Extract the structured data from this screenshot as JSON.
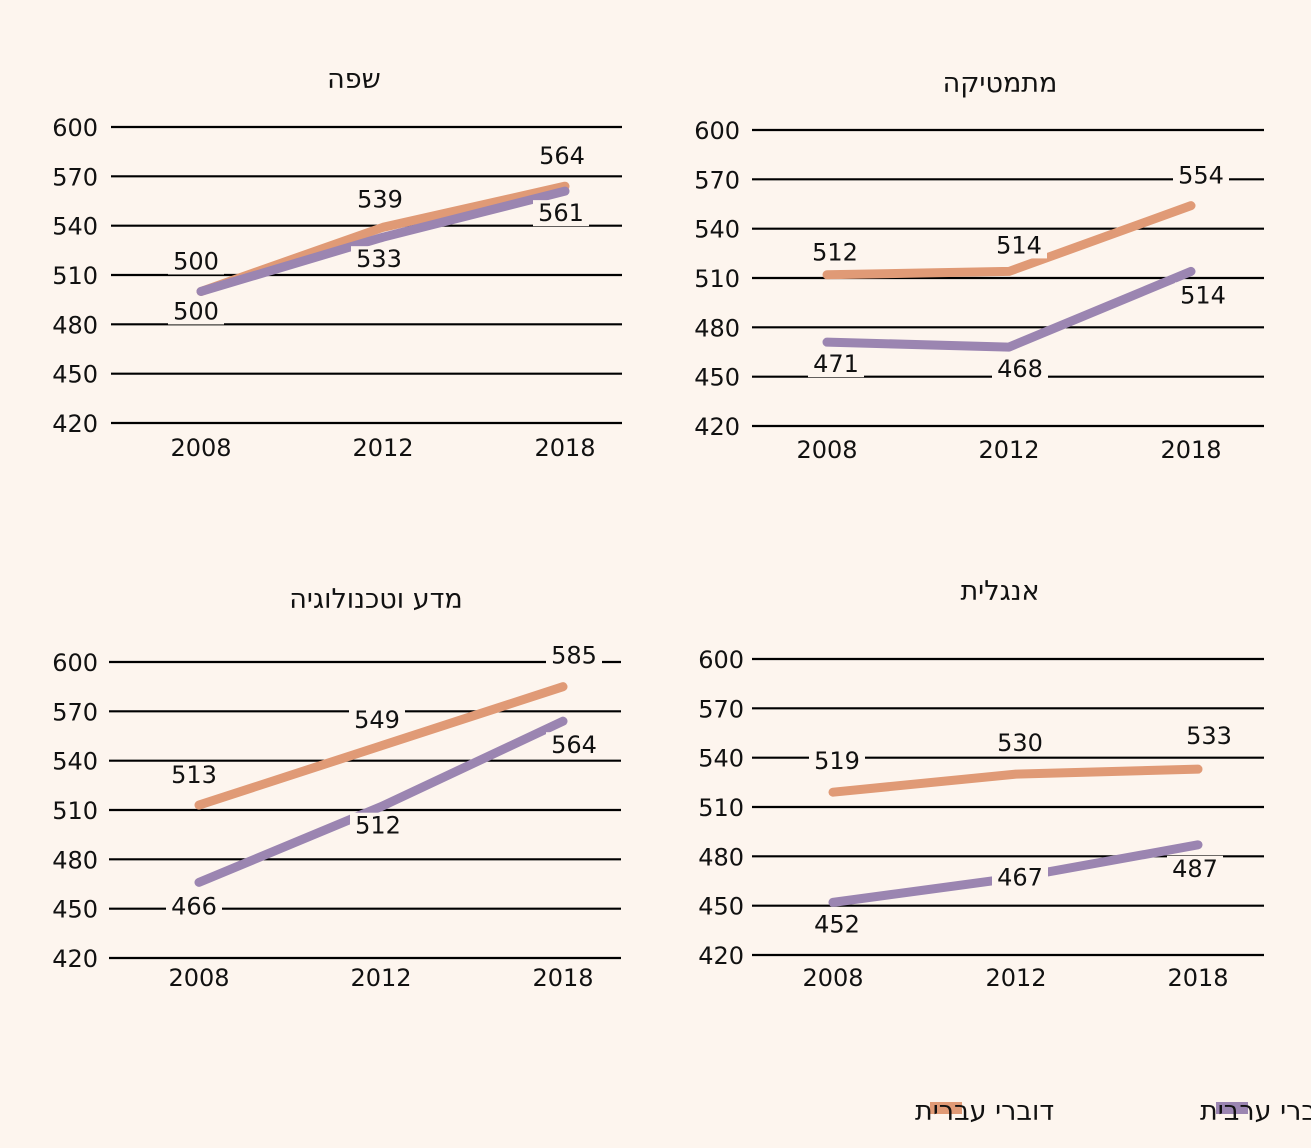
{
  "colors": {
    "hebrew": "#e09a76",
    "arabic": "#9b85b1",
    "background": "#fdf5ee",
    "grid": "#000000"
  },
  "legend": {
    "hebrew_label": "דוברי עברית",
    "arabic_label": "דוברי ערבית"
  },
  "chart_data": [
    {
      "type": "line",
      "title": "מתמטיקה",
      "categories": [
        "2008",
        "2012",
        "2018"
      ],
      "ylim": [
        420,
        600
      ],
      "yticks": [
        420,
        450,
        480,
        510,
        540,
        570,
        600
      ],
      "grid": true,
      "series": [
        {
          "name": "דוברי עברית",
          "key": "hebrew",
          "values": [
            512,
            514,
            554
          ]
        },
        {
          "name": "דוברי ערבית",
          "key": "arabic",
          "values": [
            471,
            468,
            514
          ]
        }
      ]
    },
    {
      "type": "line",
      "title": "שפה",
      "categories": [
        "2008",
        "2012",
        "2018"
      ],
      "ylim": [
        420,
        600
      ],
      "yticks": [
        420,
        450,
        480,
        510,
        540,
        570,
        600
      ],
      "grid": true,
      "series": [
        {
          "name": "דוברי עברית",
          "key": "hebrew",
          "values": [
            500,
            539,
            564
          ]
        },
        {
          "name": "דוברי ערבית",
          "key": "arabic",
          "values": [
            500,
            533,
            561
          ]
        }
      ]
    },
    {
      "type": "line",
      "title": "אנגלית",
      "categories": [
        "2008",
        "2012",
        "2018"
      ],
      "ylim": [
        420,
        600
      ],
      "yticks": [
        420,
        450,
        480,
        510,
        540,
        570,
        600
      ],
      "grid": true,
      "series": [
        {
          "name": "דוברי עברית",
          "key": "hebrew",
          "values": [
            519,
            530,
            533
          ]
        },
        {
          "name": "דוברי ערבית",
          "key": "arabic",
          "values": [
            452,
            467,
            487
          ]
        }
      ]
    },
    {
      "type": "line",
      "title": "מדע וטכנולוגיה",
      "categories": [
        "2008",
        "2012",
        "2018"
      ],
      "ylim": [
        420,
        600
      ],
      "yticks": [
        420,
        450,
        480,
        510,
        540,
        570,
        600
      ],
      "grid": true,
      "series": [
        {
          "name": "דוברי עברית",
          "key": "hebrew",
          "values": [
            513,
            549,
            585
          ]
        },
        {
          "name": "דוברי ערבית",
          "key": "arabic",
          "values": [
            466,
            512,
            564
          ]
        }
      ]
    }
  ]
}
